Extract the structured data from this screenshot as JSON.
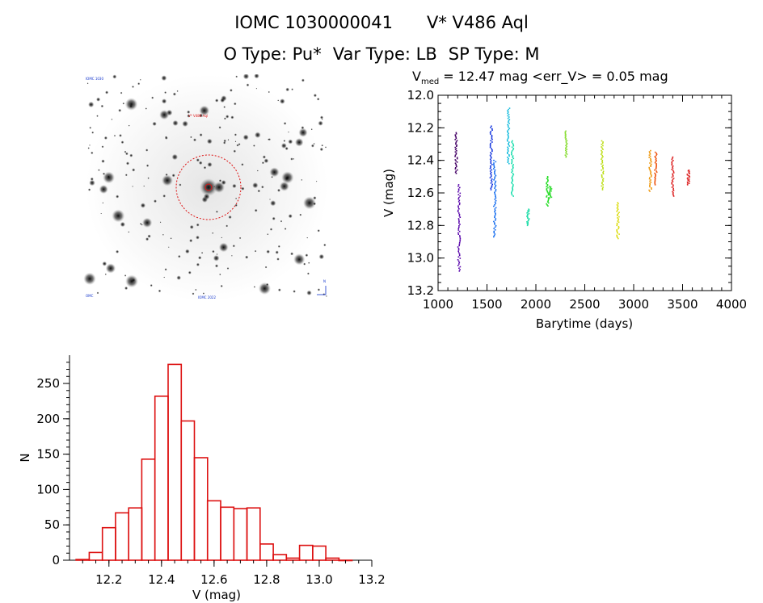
{
  "header": {
    "id_label": "IOMC 1030000041",
    "name_label": "V* V486 Aql",
    "otype": "O Type: Pu*",
    "vartype": "Var Type: LB",
    "sptype": "SP Type: M"
  },
  "stats": {
    "vmed_sym": "V",
    "vmed_sub": "med",
    "vmed_text": " = 12.47 mag <err_V> = 0.05 mag"
  },
  "colors": {
    "hist_bar": "#dd1111",
    "finder_circle": "#dd1111"
  },
  "finder": {
    "label_tl": "IOMC 1030",
    "label_target": "V* V486 Aql",
    "label_bl": "OMC",
    "label_bc": "IOMC 2022",
    "label_br": "N"
  },
  "chart_data": [
    {
      "type": "scatter",
      "title": "",
      "xlabel": "Barytime (days)",
      "ylabel": "V (mag)",
      "xlim": [
        1000,
        4000
      ],
      "ylim": [
        12.0,
        13.2
      ],
      "y_inverted": true,
      "xticks": [
        1000,
        1500,
        2000,
        2500,
        3000,
        3500,
        4000
      ],
      "yticks": [
        12.0,
        12.2,
        12.4,
        12.6,
        12.8,
        13.0,
        13.2
      ],
      "groups": [
        {
          "x": 1185,
          "ymin": 12.23,
          "ymax": 12.48,
          "color": "#440066"
        },
        {
          "x": 1215,
          "ymin": 12.55,
          "ymax": 13.08,
          "color": "#5500aa"
        },
        {
          "x": 1545,
          "ymin": 12.19,
          "ymax": 12.58,
          "color": "#0a2ddd"
        },
        {
          "x": 1580,
          "ymin": 12.4,
          "ymax": 12.87,
          "color": "#0a66ee"
        },
        {
          "x": 1720,
          "ymin": 12.08,
          "ymax": 12.42,
          "color": "#11bbdd"
        },
        {
          "x": 1760,
          "ymin": 12.28,
          "ymax": 12.62,
          "color": "#11ddaa"
        },
        {
          "x": 1920,
          "ymin": 12.7,
          "ymax": 12.8,
          "color": "#22ddaa"
        },
        {
          "x": 2120,
          "ymin": 12.5,
          "ymax": 12.68,
          "color": "#22dd22"
        },
        {
          "x": 2150,
          "ymin": 12.56,
          "ymax": 12.63,
          "color": "#33dd33"
        },
        {
          "x": 2310,
          "ymin": 12.22,
          "ymax": 12.38,
          "color": "#88dd33"
        },
        {
          "x": 2680,
          "ymin": 12.28,
          "ymax": 12.58,
          "color": "#bbdd11"
        },
        {
          "x": 2840,
          "ymin": 12.66,
          "ymax": 12.88,
          "color": "#dddd11"
        },
        {
          "x": 3170,
          "ymin": 12.34,
          "ymax": 12.59,
          "color": "#ee9911"
        },
        {
          "x": 3225,
          "ymin": 12.35,
          "ymax": 12.55,
          "color": "#ee5511"
        },
        {
          "x": 3400,
          "ymin": 12.38,
          "ymax": 12.62,
          "color": "#dd2222"
        },
        {
          "x": 3560,
          "ymin": 12.46,
          "ymax": 12.55,
          "color": "#dd2222"
        }
      ]
    },
    {
      "type": "bar",
      "title": "",
      "xlabel": "V (mag)",
      "ylabel": "N",
      "xlim": [
        12.05,
        13.2
      ],
      "ylim": [
        0,
        290
      ],
      "xticks": [
        12.2,
        12.4,
        12.6,
        12.8,
        13.0,
        13.2
      ],
      "yticks": [
        0,
        50,
        100,
        150,
        200,
        250
      ],
      "bin_width": 0.05,
      "bin_left_edges": [
        12.075,
        12.125,
        12.175,
        12.225,
        12.275,
        12.325,
        12.375,
        12.425,
        12.475,
        12.525,
        12.575,
        12.625,
        12.675,
        12.725,
        12.775,
        12.825,
        12.875,
        12.925,
        12.975,
        13.025,
        13.075
      ],
      "values": [
        1,
        11,
        46,
        67,
        74,
        143,
        232,
        277,
        197,
        145,
        84,
        75,
        73,
        74,
        23,
        8,
        3,
        21,
        20,
        3,
        0
      ]
    }
  ]
}
